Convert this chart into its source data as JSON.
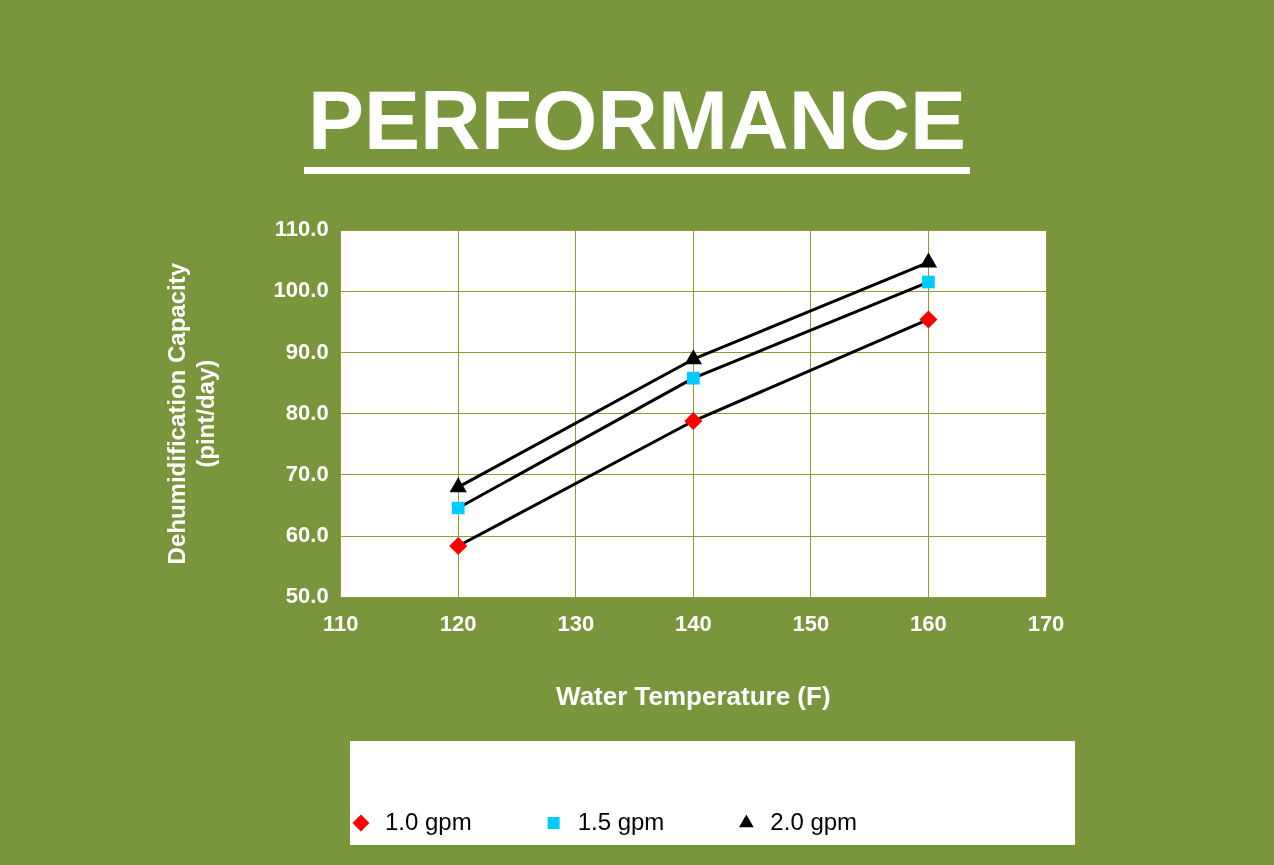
{
  "chart_data": {
    "type": "line",
    "title": "PERFORMANCE",
    "xlabel": "Water Temperature (F)",
    "ylabel": "Dehumidification Capacity\n(pint/day)",
    "x": [
      120,
      140,
      160
    ],
    "series": [
      {
        "name": "1.0 gpm",
        "color": "#ff0000",
        "marker": "diamond",
        "values": [
          58.4,
          78.8,
          95.4
        ]
      },
      {
        "name": "1.5 gpm",
        "color": "#00ccff",
        "marker": "square",
        "values": [
          64.6,
          85.8,
          101.5
        ]
      },
      {
        "name": "2.0 gpm",
        "color": "#000000",
        "marker": "triangle",
        "values": [
          68.0,
          88.9,
          104.7
        ]
      }
    ],
    "xlim": [
      110,
      170
    ],
    "xticks": [
      110,
      120,
      130,
      140,
      150,
      160,
      170
    ],
    "ylim": [
      50,
      110
    ],
    "yticks": [
      {
        "value": 50,
        "label": "50.0"
      },
      {
        "value": 60,
        "label": "60.0"
      },
      {
        "value": 70,
        "label": "70.0"
      },
      {
        "value": 80,
        "label": "80.0"
      },
      {
        "value": 90,
        "label": "90.0"
      },
      {
        "value": 100,
        "label": "100.0"
      },
      {
        "value": 110,
        "label": "110.0"
      }
    ],
    "grid": true,
    "legend": "bottom",
    "line_style": "solid"
  }
}
